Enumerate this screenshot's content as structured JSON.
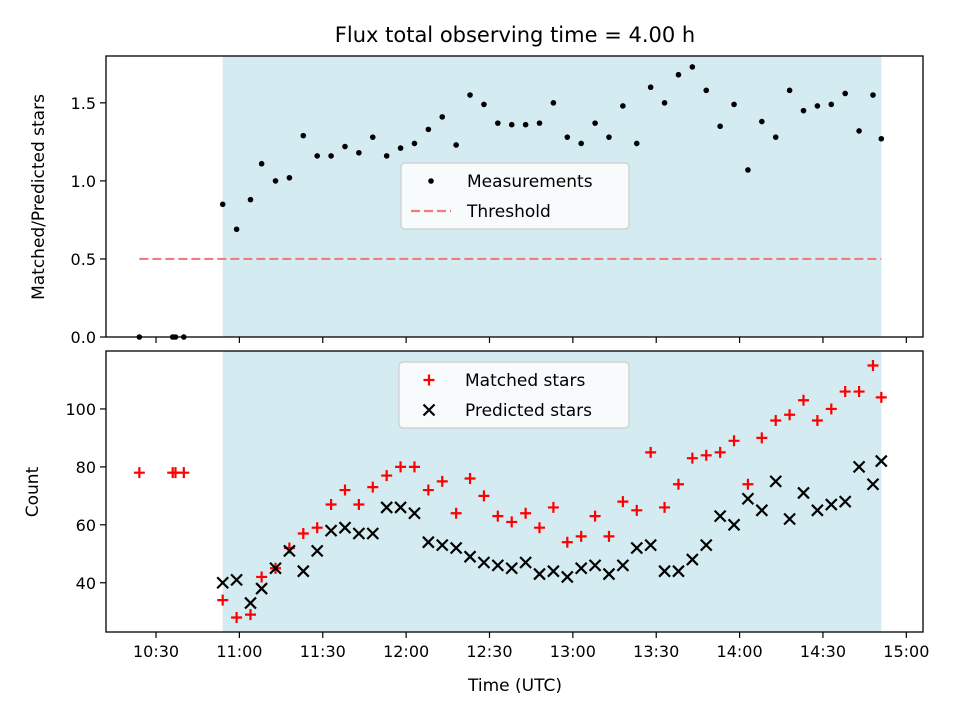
{
  "chart_data": [
    {
      "type": "scatter",
      "title": "Flux total observing time = 4.00 h",
      "ylabel": "Matched/Predicted stars",
      "xlabel": "",
      "ylim": [
        0,
        1.8
      ],
      "yticks": [
        "0.0",
        "0.5",
        "1.0",
        "1.5"
      ],
      "grid": false,
      "legend_placement": "center",
      "shaded_region": {
        "x_start": "10:54",
        "x_end": "14:51",
        "color": "#d4ebf1"
      },
      "threshold": {
        "name": "Threshold",
        "value": 0.5,
        "x_start": "10:24",
        "x_end": "14:51",
        "color": "#f47b7b"
      },
      "series": [
        {
          "name": "Measurements",
          "color": "#000000",
          "x": [
            "10:24",
            "10:36",
            "10:37",
            "10:40",
            "10:54",
            "10:59",
            "11:04",
            "11:08",
            "11:13",
            "11:18",
            "11:23",
            "11:28",
            "11:33",
            "11:38",
            "11:43",
            "11:48",
            "11:53",
            "11:58",
            "12:03",
            "12:08",
            "12:13",
            "12:18",
            "12:23",
            "12:28",
            "12:33",
            "12:38",
            "12:43",
            "12:48",
            "12:53",
            "12:58",
            "13:03",
            "13:08",
            "13:13",
            "13:18",
            "13:23",
            "13:28",
            "13:33",
            "13:38",
            "13:43",
            "13:48",
            "13:53",
            "13:58",
            "14:03",
            "14:08",
            "14:13",
            "14:18",
            "14:23",
            "14:28",
            "14:33",
            "14:38",
            "14:43",
            "14:48",
            "14:51"
          ],
          "y": [
            0.0,
            0.0,
            0.0,
            0.0,
            0.85,
            0.69,
            0.88,
            1.11,
            1.0,
            1.02,
            1.29,
            1.16,
            1.16,
            1.22,
            1.18,
            1.28,
            1.16,
            1.21,
            1.24,
            1.33,
            1.41,
            1.23,
            1.55,
            1.49,
            1.37,
            1.36,
            1.36,
            1.37,
            1.5,
            1.28,
            1.24,
            1.37,
            1.28,
            1.48,
            1.24,
            1.6,
            1.5,
            1.68,
            1.73,
            1.58,
            1.35,
            1.49,
            1.07,
            1.38,
            1.28,
            1.58,
            1.45,
            1.48,
            1.49,
            1.56,
            1.32,
            1.55,
            1.27
          ]
        }
      ]
    },
    {
      "type": "scatter",
      "title": "",
      "ylabel": "Count",
      "xlabel": "Time (UTC)",
      "ylim": [
        23,
        120
      ],
      "yticks": [
        "40",
        "60",
        "80",
        "100"
      ],
      "xticks": [
        "10:30",
        "11:00",
        "11:30",
        "12:00",
        "12:30",
        "13:00",
        "13:30",
        "14:00",
        "14:30",
        "15:00"
      ],
      "xlim": [
        "10:12",
        "15:06"
      ],
      "grid": false,
      "legend_placement": "top-center",
      "shaded_region": {
        "x_start": "10:54",
        "x_end": "14:51",
        "color": "#d4ebf1"
      },
      "series": [
        {
          "name": "Matched stars",
          "marker": "+",
          "color": "#ff0000",
          "x": [
            "10:24",
            "10:36",
            "10:37",
            "10:40",
            "10:54",
            "10:59",
            "11:04",
            "11:08",
            "11:13",
            "11:18",
            "11:23",
            "11:28",
            "11:33",
            "11:38",
            "11:43",
            "11:48",
            "11:53",
            "11:58",
            "12:03",
            "12:08",
            "12:13",
            "12:18",
            "12:23",
            "12:28",
            "12:33",
            "12:38",
            "12:43",
            "12:48",
            "12:53",
            "12:58",
            "13:03",
            "13:08",
            "13:13",
            "13:18",
            "13:23",
            "13:28",
            "13:33",
            "13:38",
            "13:43",
            "13:48",
            "13:53",
            "13:58",
            "14:03",
            "14:08",
            "14:13",
            "14:18",
            "14:23",
            "14:28",
            "14:33",
            "14:38",
            "14:43",
            "14:48",
            "14:51"
          ],
          "y": [
            78,
            78,
            78,
            78,
            34,
            28,
            29,
            42,
            45,
            52,
            57,
            59,
            67,
            72,
            67,
            73,
            77,
            80,
            80,
            72,
            75,
            64,
            76,
            70,
            63,
            61,
            64,
            59,
            66,
            54,
            56,
            63,
            56,
            68,
            65,
            85,
            66,
            74,
            83,
            84,
            85,
            89,
            74,
            90,
            96,
            98,
            103,
            96,
            100,
            106,
            106,
            115,
            104
          ]
        },
        {
          "name": "Predicted stars",
          "marker": "x",
          "color": "#000000",
          "x": [
            "10:54",
            "10:59",
            "11:04",
            "11:08",
            "11:13",
            "11:18",
            "11:23",
            "11:28",
            "11:33",
            "11:38",
            "11:43",
            "11:48",
            "11:53",
            "11:58",
            "12:03",
            "12:08",
            "12:13",
            "12:18",
            "12:23",
            "12:28",
            "12:33",
            "12:38",
            "12:43",
            "12:48",
            "12:53",
            "12:58",
            "13:03",
            "13:08",
            "13:13",
            "13:18",
            "13:23",
            "13:28",
            "13:33",
            "13:38",
            "13:43",
            "13:48",
            "13:53",
            "13:58",
            "14:03",
            "14:08",
            "14:13",
            "14:18",
            "14:23",
            "14:28",
            "14:33",
            "14:38",
            "14:43",
            "14:48",
            "14:51"
          ],
          "y": [
            40,
            41,
            33,
            38,
            45,
            51,
            44,
            51,
            58,
            59,
            57,
            57,
            66,
            66,
            64,
            54,
            53,
            52,
            49,
            47,
            46,
            45,
            47,
            43,
            44,
            42,
            45,
            46,
            43,
            46,
            52,
            53,
            44,
            44,
            48,
            53,
            63,
            60,
            69,
            65,
            75,
            62,
            71,
            65,
            67,
            68,
            80,
            74,
            82
          ]
        }
      ]
    }
  ]
}
